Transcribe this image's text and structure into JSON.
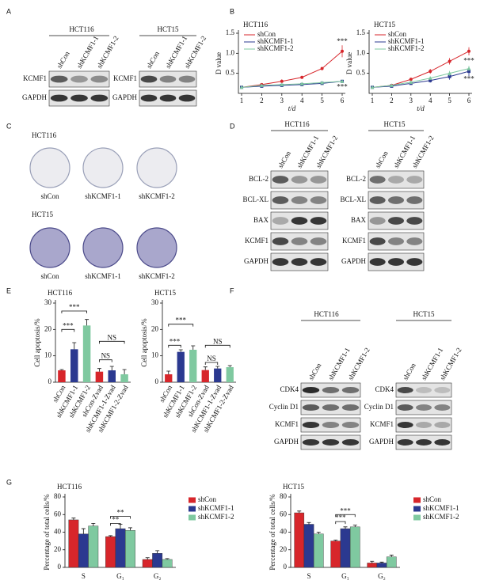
{
  "panel_labels": [
    "A",
    "B",
    "C",
    "D",
    "E",
    "F",
    "G"
  ],
  "blot_A": {
    "groups": [
      {
        "title": "HCT116",
        "lanes": [
          "shCon",
          "shKCMF1-1",
          "shKCMF1-2"
        ],
        "rows": [
          "KCMF1",
          "GAPDH"
        ]
      },
      {
        "title": "HCT15",
        "lanes": [
          "shCon",
          "shKCMF1-1",
          "shKCMF1-2"
        ],
        "rows": [
          "KCMF1",
          "GAPDH"
        ]
      }
    ]
  },
  "colony_C": {
    "groups": [
      {
        "title": "HCT116",
        "labels": [
          "shCon",
          "shKCMF1-1",
          "shKCMF1-2"
        ]
      },
      {
        "title": "HCT15",
        "labels": [
          "shCon",
          "shKCMF1-1",
          "shKCMF1-2"
        ]
      }
    ]
  },
  "blot_D": {
    "groups": [
      {
        "title": "HCT116",
        "lanes": [
          "shCon",
          "shKCMF1-1",
          "shKCMF1-2"
        ],
        "rows": [
          "BCL-2",
          "BCL-XL",
          "BAX",
          "KCMF1",
          "GAPDH"
        ]
      },
      {
        "title": "HCT15",
        "lanes": [
          "shCon",
          "shKCMF1-1",
          "shKCMF1-2"
        ],
        "rows": [
          "BCL-2",
          "BCL-XL",
          "BAX",
          "KCMF1",
          "GAPDH"
        ]
      }
    ]
  },
  "blot_F": {
    "groups": [
      {
        "title": "HCT116",
        "lanes": [
          "shCon",
          "shKCMF1-1",
          "shKCMF1-2"
        ],
        "rows": [
          "CDK4",
          "Cyclin D1",
          "KCMF1",
          "GAPDH"
        ]
      },
      {
        "title": "HCT15",
        "lanes": [
          "shCon",
          "shKCMF1-1",
          "shKCMF1-2"
        ],
        "rows": [
          "CDK4",
          "Cyclin D1",
          "KCMF1",
          "GAPDH"
        ]
      }
    ]
  },
  "chart_data": [
    {
      "type": "line",
      "title": "HCT116",
      "xlabel": "t/d",
      "ylabel": "D value",
      "x": [
        1,
        2,
        3,
        4,
        5,
        6
      ],
      "xlim": [
        1,
        6
      ],
      "xticks": [
        1,
        2,
        3,
        4,
        5,
        6
      ],
      "ylim": [
        0,
        1.5
      ],
      "yticks": [
        0.5,
        {
          "value": 1,
          "label": "1.0"
        },
        1.5
      ],
      "legend": "upper left",
      "series": [
        {
          "name": "shCon",
          "color": "#d7262b",
          "values": [
            0.15,
            0.22,
            0.3,
            0.4,
            0.62,
            1.05
          ],
          "errors": [
            0.02,
            0.03,
            0.05,
            0.03,
            0.04,
            0.15
          ]
        },
        {
          "name": "shKCMF1-1",
          "color": "#2b3990",
          "values": [
            0.15,
            0.18,
            0.2,
            0.22,
            0.25,
            0.3
          ],
          "errors": [
            0.02,
            0.02,
            0.02,
            0.02,
            0.02,
            0.03
          ]
        },
        {
          "name": "shKCMF1-2",
          "color": "#7fc9a0",
          "values": [
            0.15,
            0.2,
            0.22,
            0.24,
            0.27,
            0.3
          ],
          "errors": [
            0.02,
            0.02,
            0.02,
            0.02,
            0.02,
            0.03
          ]
        }
      ],
      "annotations": [
        "***",
        "***"
      ]
    },
    {
      "type": "line",
      "title": "HCT15",
      "xlabel": "t/d",
      "ylabel": "D value",
      "x": [
        1,
        2,
        3,
        4,
        5,
        6
      ],
      "xlim": [
        1,
        6
      ],
      "xticks": [
        1,
        2,
        3,
        4,
        5,
        6
      ],
      "ylim": [
        0,
        1.5
      ],
      "yticks": [
        0.5,
        {
          "value": 1,
          "label": "1.0"
        },
        1.5
      ],
      "legend": "upper left",
      "series": [
        {
          "name": "shCon",
          "color": "#d7262b",
          "values": [
            0.15,
            0.2,
            0.35,
            0.55,
            0.8,
            1.05
          ],
          "errors": [
            0.02,
            0.02,
            0.04,
            0.06,
            0.08,
            0.1
          ]
        },
        {
          "name": "shKCMF1-1",
          "color": "#2b3990",
          "values": [
            0.15,
            0.18,
            0.25,
            0.32,
            0.42,
            0.55
          ],
          "errors": [
            0.02,
            0.02,
            0.03,
            0.05,
            0.08,
            0.12
          ]
        },
        {
          "name": "shKCMF1-2",
          "color": "#7fc9a0",
          "values": [
            0.15,
            0.2,
            0.28,
            0.38,
            0.5,
            0.62
          ],
          "errors": [
            0.02,
            0.02,
            0.03,
            0.04,
            0.06,
            0.06
          ]
        }
      ],
      "annotations": [
        "***",
        "***"
      ]
    },
    {
      "type": "bar",
      "title": "HCT116",
      "ylabel": "Cell apoptosis/%",
      "categories": [
        "shCon",
        "shKCMF1-1",
        "shKCMF1-2",
        "shCon-Zvad",
        "shKCMF1-1-Zvad",
        "shKCMF1-2-Zvad"
      ],
      "values": [
        4.5,
        12.5,
        21.5,
        4,
        4.5,
        3
      ],
      "errors": [
        0.3,
        2.5,
        2.3,
        1.2,
        1.5,
        1.8
      ],
      "colors": [
        "#d7262b",
        "#2b3990",
        "#7fc9a0",
        "#d7262b",
        "#2b3990",
        "#7fc9a0"
      ],
      "ylim": [
        0,
        30
      ],
      "yticks": [
        0,
        10,
        20,
        30
      ],
      "annotations": [
        "***",
        "***",
        "NS",
        "NS"
      ]
    },
    {
      "type": "bar",
      "title": "HCT15",
      "ylabel": "Cell apoptosis/%",
      "categories": [
        "shCon",
        "shKCMF1-1",
        "shKCMF1-2",
        "shCon-Zvad",
        "shKCMF1-1-Zvad",
        "shKCMF1-2-Zvad"
      ],
      "values": [
        3,
        11.5,
        12.3,
        4.6,
        5.2,
        5.7
      ],
      "errors": [
        1.2,
        0.8,
        1.5,
        1.2,
        0.8,
        0.6
      ],
      "colors": [
        "#d7262b",
        "#2b3990",
        "#7fc9a0",
        "#d7262b",
        "#2b3990",
        "#7fc9a0"
      ],
      "ylim": [
        0,
        30
      ],
      "yticks": [
        0,
        10,
        20,
        30
      ],
      "annotations": [
        "***",
        "***",
        "NS",
        "NS"
      ]
    },
    {
      "type": "bar",
      "title": "HCT116",
      "ylabel": "Percentage of total cells/%",
      "categories": [
        "S",
        "G₁",
        "G₂"
      ],
      "ylim": [
        0,
        80
      ],
      "yticks": [
        0,
        20,
        40,
        60,
        80
      ],
      "legend": "right",
      "series": [
        {
          "name": "shCon",
          "color": "#d7262b",
          "values": [
            54,
            35,
            9
          ],
          "errors": [
            2,
            1,
            2
          ]
        },
        {
          "name": "shKCMF1-1",
          "color": "#2b3990",
          "values": [
            38,
            44,
            16
          ],
          "errors": [
            6,
            5,
            3
          ]
        },
        {
          "name": "shKCMF1-2",
          "color": "#7fc9a0",
          "values": [
            47,
            42,
            9
          ],
          "errors": [
            3,
            3,
            1
          ]
        }
      ],
      "annotations": [
        "**",
        "**"
      ]
    },
    {
      "type": "bar",
      "title": "HCT15",
      "ylabel": "Percentage of total cells/%",
      "categories": [
        "S",
        "G₁",
        "G₂"
      ],
      "ylim": [
        0,
        80
      ],
      "yticks": [
        0,
        20,
        40,
        60,
        80
      ],
      "legend": "right",
      "series": [
        {
          "name": "shCon",
          "color": "#d7262b",
          "values": [
            62,
            30,
            5
          ],
          "errors": [
            2,
            1,
            2
          ]
        },
        {
          "name": "shKCMF1-1",
          "color": "#2b3990",
          "values": [
            49,
            44,
            5
          ],
          "errors": [
            2,
            2,
            1
          ]
        },
        {
          "name": "shKCMF1-2",
          "color": "#7fc9a0",
          "values": [
            38,
            46,
            12
          ],
          "errors": [
            2,
            2,
            2
          ]
        }
      ],
      "annotations": [
        "***",
        "***"
      ]
    }
  ]
}
